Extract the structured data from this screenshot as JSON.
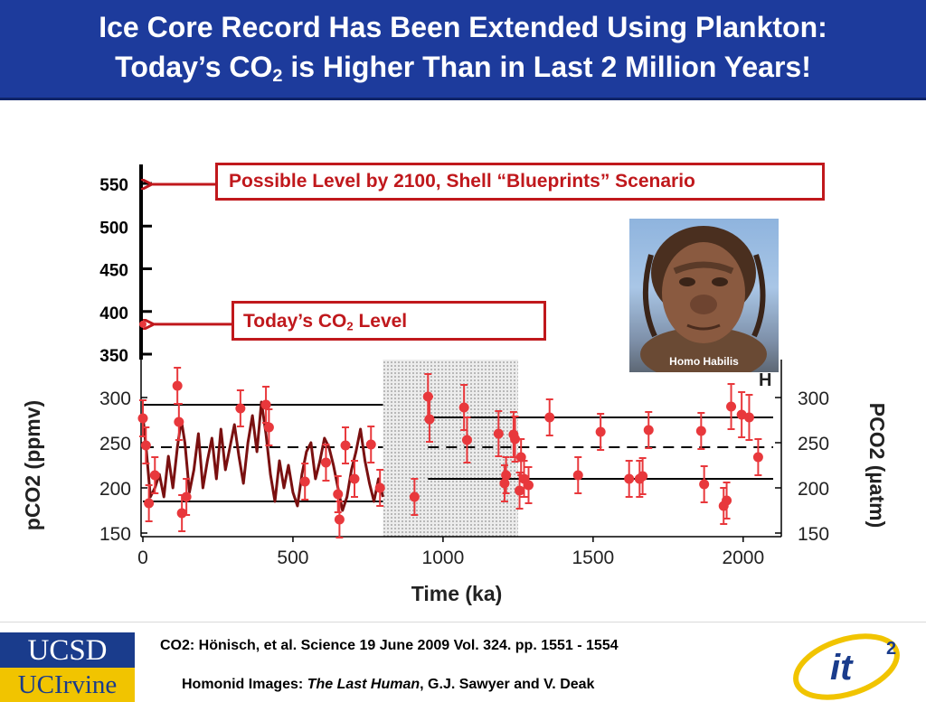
{
  "slide": {
    "title_line1": "Ice Core Record Has Been Extended Using Plankton:",
    "title_line2_pre": "Today’s CO",
    "title_line2_sub": "2",
    "title_line2_post": " is Higher Than in Last 2 Million Years!"
  },
  "callouts": {
    "level_2100": "Possible Level by 2100, Shell “Blueprints” Scenario",
    "today_pre": "Today’s CO",
    "today_sub": "2",
    "today_post": " Level"
  },
  "photo": {
    "label": "Homo Habilis"
  },
  "footer": {
    "citation1": "CO2: Hönisch, et al. Science 19 June 2009 Vol. 324. pp. 1551 - 1554",
    "citation2_pre": "Homonid Images: ",
    "citation2_italic": "The Last Human",
    "citation2_post": ", G.J. Sawyer and V. Deak",
    "logo_ucsd": "UCSD",
    "logo_uci": "UCIrvine",
    "logo_it2": "it",
    "logo_it2_sup": "2"
  },
  "colors": {
    "title_bg": "#1d3b9c",
    "accent_red": "#c0181c",
    "ice_core": "#7a1010",
    "points": "#e8383c"
  },
  "chart_data": {
    "type": "scatter",
    "xlabel": "Time (ka)",
    "ylabel_left": "pCO2 (ppmv)",
    "ylabel_right": "PCO2 (µatm)",
    "xlim": [
      0,
      2100
    ],
    "ylim": [
      150,
      300
    ],
    "x_ticks": [
      "0",
      "500",
      "1000",
      "1500",
      "2000"
    ],
    "y_ticks": [
      "150",
      "200",
      "250",
      "300"
    ],
    "y_ticks_right": [
      "150",
      "200",
      "250",
      "300"
    ],
    "extended_axis_ticks": [
      "350",
      "400",
      "450",
      "500",
      "550"
    ],
    "today_level": 385,
    "level_2100": 550,
    "shaded_interval": [
      800,
      1250
    ],
    "corner_letter": "H",
    "reference_lines": [
      {
        "x": [
          0,
          800
        ],
        "values": [
          292,
          185
        ],
        "style": "solid"
      },
      {
        "x": [
          0,
          800
        ],
        "values": [
          245
        ],
        "style": "dashed"
      },
      {
        "x": [
          950,
          2100
        ],
        "values": [
          278,
          210
        ],
        "style": "solid"
      },
      {
        "x": [
          950,
          2100
        ],
        "values": [
          245
        ],
        "style": "dashed"
      }
    ],
    "series": [
      {
        "type": "line",
        "x": [
          0,
          12,
          25,
          40,
          55,
          70,
          85,
          100,
          115,
          128,
          140,
          155,
          170,
          185,
          200,
          215,
          230,
          245,
          260,
          275,
          290,
          305,
          320,
          335,
          350,
          365,
          380,
          395,
          410,
          425,
          440,
          455,
          470,
          485,
          500,
          515,
          530,
          545,
          560,
          575,
          590,
          605,
          620,
          635,
          650,
          665,
          680,
          695,
          710,
          725,
          740,
          755,
          770,
          785,
          800
        ],
        "values": [
          280,
          240,
          190,
          200,
          215,
          190,
          235,
          200,
          245,
          275,
          250,
          195,
          220,
          260,
          200,
          230,
          255,
          210,
          265,
          220,
          245,
          270,
          235,
          205,
          250,
          280,
          240,
          295,
          260,
          215,
          185,
          230,
          200,
          225,
          195,
          180,
          215,
          240,
          250,
          210,
          230,
          255,
          245,
          225,
          200,
          175,
          190,
          220,
          240,
          265,
          230,
          205,
          185,
          210,
          190
        ]
      },
      {
        "type": "points",
        "x": [
          0,
          10,
          20,
          40,
          115,
          120,
          130,
          145,
          325,
          410,
          420,
          540,
          610,
          650,
          655,
          675,
          705,
          760,
          790,
          905,
          950,
          955,
          1070,
          1080,
          1185,
          1205,
          1210,
          1235,
          1240,
          1255,
          1260,
          1270,
          1285,
          1355,
          1450,
          1525,
          1620,
          1655,
          1665,
          1685,
          1860,
          1870,
          1935,
          1945,
          1960,
          1995,
          2020,
          2050
        ],
        "values": [
          277,
          247,
          183,
          214,
          313,
          273,
          172,
          190,
          288,
          292,
          267,
          207,
          228,
          193,
          165,
          247,
          210,
          248,
          200,
          190,
          301,
          276,
          289,
          253,
          260,
          205,
          214,
          259,
          254,
          197,
          234,
          210,
          203,
          278,
          214,
          262,
          210,
          210,
          213,
          264,
          263,
          204,
          180,
          186,
          290,
          281,
          278,
          234
        ],
        "errors": [
          20,
          20,
          20,
          20,
          20,
          20,
          20,
          20,
          20,
          20,
          20,
          20,
          20,
          20,
          20,
          20,
          20,
          20,
          20,
          20,
          25,
          25,
          25,
          25,
          25,
          20,
          20,
          25,
          25,
          20,
          20,
          20,
          20,
          20,
          20,
          20,
          20,
          20,
          20,
          20,
          20,
          20,
          20,
          20,
          25,
          25,
          25,
          20
        ]
      }
    ]
  }
}
